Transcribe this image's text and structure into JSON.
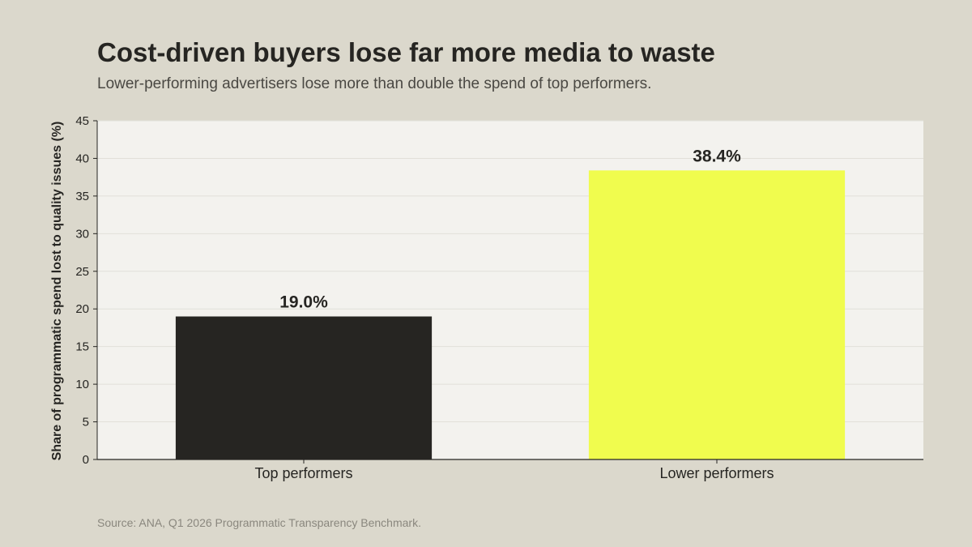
{
  "title": "Cost-driven buyers lose far more media to waste",
  "subtitle": "Lower-performing advertisers lose more than double the spend of top performers.",
  "source": "Source: ANA, Q1 2026 Programmatic Transparency Benchmark.",
  "colors": {
    "background": "#dbd8cc",
    "plot_background": "#f3f2ee",
    "gridline": "#e2e0d9",
    "axis": "#262522",
    "text": "#262522"
  },
  "chart_data": {
    "type": "bar",
    "categories": [
      "Top performers",
      "Lower performers"
    ],
    "values": [
      19.0,
      38.4
    ],
    "data_labels": [
      "19.0%",
      "38.4%"
    ],
    "bar_colors": [
      "#262522",
      "#f0fc4e"
    ],
    "ylabel": "Share of programmatic spend lost to quality issues (%)",
    "xlabel": "",
    "ylim": [
      0,
      45
    ],
    "yticks": [
      0,
      5,
      10,
      15,
      20,
      25,
      30,
      35,
      40,
      45
    ],
    "grid": true,
    "legend": "none"
  }
}
